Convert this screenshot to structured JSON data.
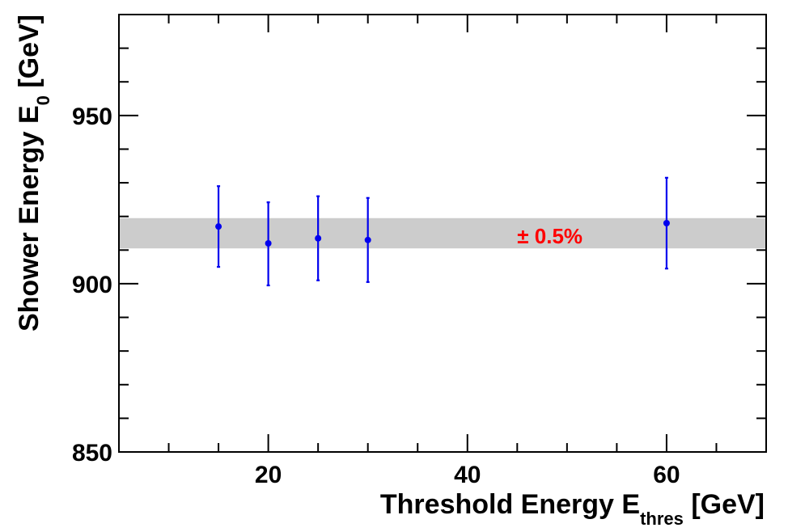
{
  "chart_data": {
    "type": "scatter",
    "xlabel": {
      "main": "Threshold Energy E",
      "sub": "thres",
      "unit": " [GeV]"
    },
    "ylabel": {
      "main": "Shower Energy E",
      "sub": "0",
      "unit": " [GeV]"
    },
    "xlim": [
      5,
      70
    ],
    "ylim": [
      850,
      980
    ],
    "x_ticks": [
      20,
      40,
      60
    ],
    "y_ticks": [
      850,
      900,
      950
    ],
    "grid": false,
    "series": [
      {
        "x": [
          15,
          20,
          25,
          30,
          60
        ],
        "y": [
          917,
          912,
          913.5,
          913,
          918
        ],
        "err_low": [
          12,
          12.5,
          12.5,
          12.5,
          13.5
        ],
        "err_high": [
          12,
          12.2,
          12.5,
          12.5,
          13.5
        ],
        "color": "#0000ee"
      }
    ],
    "band": {
      "y_low": 910.5,
      "y_high": 919.5,
      "color": "#cccccc"
    },
    "annotation": {
      "text": "± 0.5%",
      "x": 45,
      "y": 912,
      "color": "#ff0000"
    }
  }
}
